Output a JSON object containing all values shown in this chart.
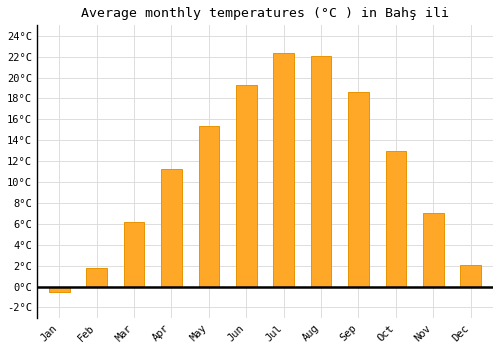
{
  "months": [
    "Jan",
    "Feb",
    "Mar",
    "Apr",
    "May",
    "Jun",
    "Jul",
    "Aug",
    "Sep",
    "Oct",
    "Nov",
    "Dec"
  ],
  "temperatures": [
    -0.5,
    1.8,
    6.2,
    11.2,
    15.4,
    19.3,
    22.3,
    22.1,
    18.6,
    13.0,
    7.0,
    2.1
  ],
  "bar_color": "#FFA726",
  "bar_edge_color": "#E89400",
  "title": "Average monthly temperatures (°C ) in Bahş ili",
  "ylim": [
    -3,
    25
  ],
  "yticks": [
    -2,
    0,
    2,
    4,
    6,
    8,
    10,
    12,
    14,
    16,
    18,
    20,
    22,
    24
  ],
  "background_color": "#ffffff",
  "grid_color": "#dddddd",
  "title_fontsize": 9.5,
  "tick_fontsize": 7.5
}
